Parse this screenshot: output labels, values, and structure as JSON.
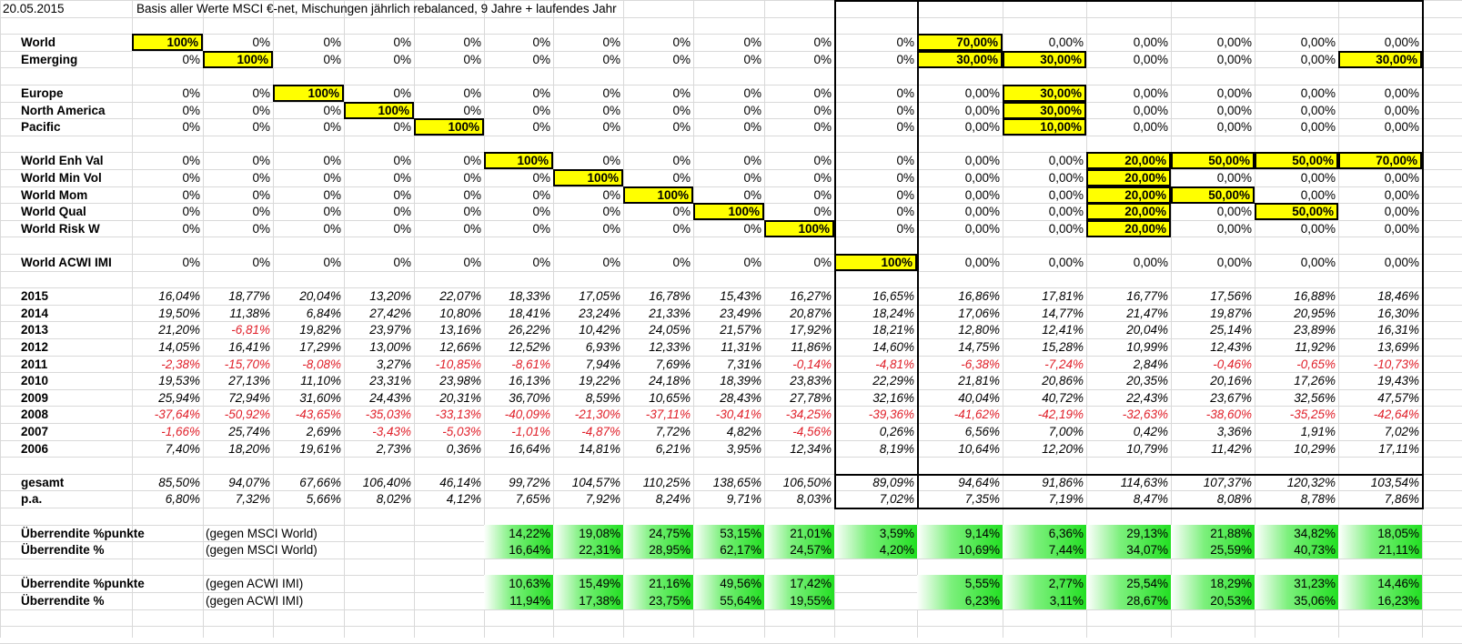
{
  "header": {
    "date": "20.05.2015",
    "description": "Basis aller Werte MSCI €-net, Mischungen jährlich rebalanced, 9 Jahre + laufendes Jahr"
  },
  "alloc_rows": [
    {
      "label": "World",
      "vals": [
        "100%",
        "0%",
        "0%",
        "0%",
        "0%",
        "0%",
        "0%",
        "0%",
        "0%",
        "0%",
        "0%",
        "70,00%",
        "0,00%",
        "0,00%",
        "0,00%",
        "0,00%",
        "0,00%"
      ],
      "hl": [
        0,
        11
      ]
    },
    {
      "label": "Emerging",
      "vals": [
        "0%",
        "100%",
        "0%",
        "0%",
        "0%",
        "0%",
        "0%",
        "0%",
        "0%",
        "0%",
        "0%",
        "30,00%",
        "30,00%",
        "0,00%",
        "0,00%",
        "0,00%",
        "30,00%"
      ],
      "hl": [
        1,
        11,
        12,
        16
      ]
    },
    {
      "label": "Europe",
      "vals": [
        "0%",
        "0%",
        "100%",
        "0%",
        "0%",
        "0%",
        "0%",
        "0%",
        "0%",
        "0%",
        "0%",
        "0,00%",
        "30,00%",
        "0,00%",
        "0,00%",
        "0,00%",
        "0,00%"
      ],
      "hl": [
        2,
        12
      ]
    },
    {
      "label": "North America",
      "vals": [
        "0%",
        "0%",
        "0%",
        "100%",
        "0%",
        "0%",
        "0%",
        "0%",
        "0%",
        "0%",
        "0%",
        "0,00%",
        "30,00%",
        "0,00%",
        "0,00%",
        "0,00%",
        "0,00%"
      ],
      "hl": [
        3,
        12
      ]
    },
    {
      "label": "Pacific",
      "vals": [
        "0%",
        "0%",
        "0%",
        "0%",
        "100%",
        "0%",
        "0%",
        "0%",
        "0%",
        "0%",
        "0%",
        "0,00%",
        "10,00%",
        "0,00%",
        "0,00%",
        "0,00%",
        "0,00%"
      ],
      "hl": [
        4,
        12
      ]
    },
    {
      "label": "World Enh Val",
      "vals": [
        "0%",
        "0%",
        "0%",
        "0%",
        "0%",
        "100%",
        "0%",
        "0%",
        "0%",
        "0%",
        "0%",
        "0,00%",
        "0,00%",
        "20,00%",
        "50,00%",
        "50,00%",
        "70,00%"
      ],
      "hl": [
        5,
        13,
        14,
        15,
        16
      ]
    },
    {
      "label": "World Min Vol",
      "vals": [
        "0%",
        "0%",
        "0%",
        "0%",
        "0%",
        "0%",
        "100%",
        "0%",
        "0%",
        "0%",
        "0%",
        "0,00%",
        "0,00%",
        "20,00%",
        "0,00%",
        "0,00%",
        "0,00%"
      ],
      "hl": [
        6,
        13
      ]
    },
    {
      "label": "World Mom",
      "vals": [
        "0%",
        "0%",
        "0%",
        "0%",
        "0%",
        "0%",
        "0%",
        "100%",
        "0%",
        "0%",
        "0%",
        "0,00%",
        "0,00%",
        "20,00%",
        "50,00%",
        "0,00%",
        "0,00%"
      ],
      "hl": [
        7,
        13,
        14
      ]
    },
    {
      "label": "World Qual",
      "vals": [
        "0%",
        "0%",
        "0%",
        "0%",
        "0%",
        "0%",
        "0%",
        "0%",
        "100%",
        "0%",
        "0%",
        "0,00%",
        "0,00%",
        "20,00%",
        "0,00%",
        "50,00%",
        "0,00%"
      ],
      "hl": [
        8,
        13,
        15
      ]
    },
    {
      "label": "World Risk W",
      "vals": [
        "0%",
        "0%",
        "0%",
        "0%",
        "0%",
        "0%",
        "0%",
        "0%",
        "0%",
        "100%",
        "0%",
        "0,00%",
        "0,00%",
        "20,00%",
        "0,00%",
        "0,00%",
        "0,00%"
      ],
      "hl": [
        9,
        13
      ]
    },
    {
      "label": "World ACWI IMI",
      "vals": [
        "0%",
        "0%",
        "0%",
        "0%",
        "0%",
        "0%",
        "0%",
        "0%",
        "0%",
        "0%",
        "100%",
        "0,00%",
        "0,00%",
        "0,00%",
        "0,00%",
        "0,00%",
        "0,00%"
      ],
      "hl": [
        10
      ]
    }
  ],
  "year_rows": [
    {
      "label": "2015",
      "vals": [
        "16,04%",
        "18,77%",
        "20,04%",
        "13,20%",
        "22,07%",
        "18,33%",
        "17,05%",
        "16,78%",
        "15,43%",
        "16,27%",
        "16,65%",
        "16,86%",
        "17,81%",
        "16,77%",
        "17,56%",
        "16,88%",
        "18,46%"
      ]
    },
    {
      "label": "2014",
      "vals": [
        "19,50%",
        "11,38%",
        "6,84%",
        "27,42%",
        "10,80%",
        "18,41%",
        "23,24%",
        "21,33%",
        "23,49%",
        "20,87%",
        "18,24%",
        "17,06%",
        "14,77%",
        "21,47%",
        "19,87%",
        "20,95%",
        "16,30%"
      ]
    },
    {
      "label": "2013",
      "vals": [
        "21,20%",
        "-6,81%",
        "19,82%",
        "23,97%",
        "13,16%",
        "26,22%",
        "10,42%",
        "24,05%",
        "21,57%",
        "17,92%",
        "18,21%",
        "12,80%",
        "12,41%",
        "20,04%",
        "25,14%",
        "23,89%",
        "16,31%"
      ]
    },
    {
      "label": "2012",
      "vals": [
        "14,05%",
        "16,41%",
        "17,29%",
        "13,00%",
        "12,66%",
        "12,52%",
        "6,93%",
        "12,33%",
        "11,31%",
        "11,86%",
        "14,60%",
        "14,75%",
        "15,28%",
        "10,99%",
        "12,43%",
        "11,92%",
        "13,69%"
      ]
    },
    {
      "label": "2011",
      "vals": [
        "-2,38%",
        "-15,70%",
        "-8,08%",
        "3,27%",
        "-10,85%",
        "-8,61%",
        "7,94%",
        "7,69%",
        "7,31%",
        "-0,14%",
        "-4,81%",
        "-6,38%",
        "-7,24%",
        "2,84%",
        "-0,46%",
        "-0,65%",
        "-10,73%"
      ]
    },
    {
      "label": "2010",
      "vals": [
        "19,53%",
        "27,13%",
        "11,10%",
        "23,31%",
        "23,98%",
        "16,13%",
        "19,22%",
        "24,18%",
        "18,39%",
        "23,83%",
        "22,29%",
        "21,81%",
        "20,86%",
        "20,35%",
        "20,16%",
        "17,26%",
        "19,43%"
      ]
    },
    {
      "label": "2009",
      "vals": [
        "25,94%",
        "72,94%",
        "31,60%",
        "24,43%",
        "20,31%",
        "36,70%",
        "8,59%",
        "10,65%",
        "28,43%",
        "27,78%",
        "32,16%",
        "40,04%",
        "40,72%",
        "22,43%",
        "23,67%",
        "32,56%",
        "47,57%"
      ]
    },
    {
      "label": "2008",
      "vals": [
        "-37,64%",
        "-50,92%",
        "-43,65%",
        "-35,03%",
        "-33,13%",
        "-40,09%",
        "-21,30%",
        "-37,11%",
        "-30,41%",
        "-34,25%",
        "-39,36%",
        "-41,62%",
        "-42,19%",
        "-32,63%",
        "-38,60%",
        "-35,25%",
        "-42,64%"
      ]
    },
    {
      "label": "2007",
      "vals": [
        "-1,66%",
        "25,74%",
        "2,69%",
        "-3,43%",
        "-5,03%",
        "-1,01%",
        "-4,87%",
        "7,72%",
        "4,82%",
        "-4,56%",
        "0,26%",
        "6,56%",
        "7,00%",
        "0,42%",
        "3,36%",
        "1,91%",
        "7,02%"
      ]
    },
    {
      "label": "2006",
      "vals": [
        "7,40%",
        "18,20%",
        "19,61%",
        "2,73%",
        "0,36%",
        "16,64%",
        "14,81%",
        "6,21%",
        "3,95%",
        "12,34%",
        "8,19%",
        "10,64%",
        "12,20%",
        "10,79%",
        "11,42%",
        "10,29%",
        "17,11%"
      ]
    }
  ],
  "summary_rows": [
    {
      "label": "gesamt",
      "vals": [
        "85,50%",
        "94,07%",
        "67,66%",
        "106,40%",
        "46,14%",
        "99,72%",
        "104,57%",
        "110,25%",
        "138,65%",
        "106,50%",
        "89,09%",
        "94,64%",
        "91,86%",
        "114,63%",
        "107,37%",
        "120,32%",
        "103,54%"
      ]
    },
    {
      "label": "p.a.",
      "vals": [
        "6,80%",
        "7,32%",
        "5,66%",
        "8,02%",
        "4,12%",
        "7,65%",
        "7,92%",
        "8,24%",
        "9,71%",
        "8,03%",
        "7,02%",
        "7,35%",
        "7,19%",
        "8,47%",
        "8,08%",
        "8,78%",
        "7,86%"
      ]
    }
  ],
  "excess_rows": [
    {
      "label": "Überrendite %punkte",
      "ref": "(gegen MSCI World)",
      "vals": [
        "",
        "",
        "",
        "",
        "",
        "14,22%",
        "19,08%",
        "24,75%",
        "53,15%",
        "21,01%",
        "3,59%",
        "9,14%",
        "6,36%",
        "29,13%",
        "21,88%",
        "34,82%",
        "18,05%"
      ]
    },
    {
      "label": "Überrendite %",
      "ref": "(gegen MSCI World)",
      "vals": [
        "",
        "",
        "",
        "",
        "",
        "16,64%",
        "22,31%",
        "28,95%",
        "62,17%",
        "24,57%",
        "4,20%",
        "10,69%",
        "7,44%",
        "34,07%",
        "25,59%",
        "40,73%",
        "21,11%"
      ]
    },
    {
      "label": "Überrendite %punkte",
      "ref": "(gegen ACWI IMI)",
      "vals": [
        "",
        "",
        "",
        "",
        "",
        "10,63%",
        "15,49%",
        "21,16%",
        "49,56%",
        "17,42%",
        "",
        "5,55%",
        "2,77%",
        "25,54%",
        "18,29%",
        "31,23%",
        "14,46%"
      ]
    },
    {
      "label": "Überrendite %",
      "ref": "(gegen ACWI IMI)",
      "vals": [
        "",
        "",
        "",
        "",
        "",
        "11,94%",
        "17,38%",
        "23,75%",
        "55,64%",
        "19,55%",
        "",
        "6,23%",
        "3,11%",
        "28,67%",
        "20,53%",
        "35,06%",
        "16,23%"
      ]
    }
  ]
}
